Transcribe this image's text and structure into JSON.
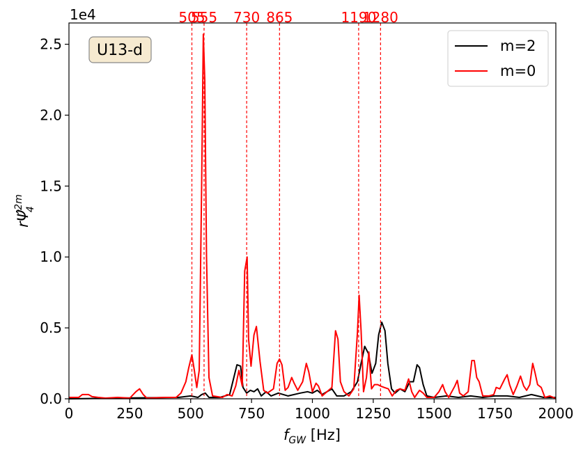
{
  "chart_data": {
    "type": "line",
    "xlabel_main": "f",
    "xlabel_sub": "GW",
    "xlabel_unit": " [Hz]",
    "ylabel": "rΨ̂",
    "ylabel_sup": "2m",
    "ylabel_sub": "4",
    "y_multiplier": "1e4",
    "badge": "U13-d",
    "xlim": [
      0,
      2000
    ],
    "ylim": [
      0,
      2.65
    ],
    "x_ticks": [
      0,
      250,
      500,
      750,
      1000,
      1250,
      1500,
      1750,
      2000
    ],
    "x_tick_labels": [
      "0",
      "250",
      "500",
      "750",
      "1000",
      "1250",
      "1500",
      "1750",
      "2000"
    ],
    "y_ticks": [
      0,
      0.5,
      1.0,
      1.5,
      2.0,
      2.5
    ],
    "y_tick_labels": [
      "0.0",
      "0.5",
      "1.0",
      "1.5",
      "2.0",
      "2.5"
    ],
    "peak_lines": [
      505,
      555,
      730,
      865,
      1190,
      1280
    ],
    "peak_labels": [
      "505",
      "555",
      "730",
      "865",
      "1190",
      "1280"
    ],
    "legend_position": "top-right",
    "series": [
      {
        "name": "m=2",
        "color": "#000000",
        "points": [
          [
            0,
            0
          ],
          [
            200,
            0.005
          ],
          [
            450,
            0.01
          ],
          [
            500,
            0.02
          ],
          [
            530,
            0.01
          ],
          [
            545,
            0.03
          ],
          [
            560,
            0.04
          ],
          [
            575,
            0.01
          ],
          [
            620,
            0.01
          ],
          [
            660,
            0.03
          ],
          [
            690,
            0.24
          ],
          [
            705,
            0.23
          ],
          [
            715,
            0.08
          ],
          [
            730,
            0.04
          ],
          [
            745,
            0.06
          ],
          [
            760,
            0.05
          ],
          [
            775,
            0.07
          ],
          [
            790,
            0.02
          ],
          [
            810,
            0.05
          ],
          [
            830,
            0.02
          ],
          [
            860,
            0.04
          ],
          [
            900,
            0.02
          ],
          [
            950,
            0.04
          ],
          [
            980,
            0.05
          ],
          [
            1000,
            0.04
          ],
          [
            1020,
            0.06
          ],
          [
            1040,
            0.03
          ],
          [
            1060,
            0.05
          ],
          [
            1080,
            0.07
          ],
          [
            1100,
            0.02
          ],
          [
            1130,
            0.02
          ],
          [
            1160,
            0.05
          ],
          [
            1185,
            0.12
          ],
          [
            1200,
            0.25
          ],
          [
            1215,
            0.37
          ],
          [
            1230,
            0.32
          ],
          [
            1245,
            0.18
          ],
          [
            1260,
            0.25
          ],
          [
            1272,
            0.45
          ],
          [
            1285,
            0.54
          ],
          [
            1298,
            0.48
          ],
          [
            1310,
            0.25
          ],
          [
            1325,
            0.07
          ],
          [
            1340,
            0.04
          ],
          [
            1360,
            0.07
          ],
          [
            1380,
            0.05
          ],
          [
            1400,
            0.12
          ],
          [
            1415,
            0.12
          ],
          [
            1430,
            0.24
          ],
          [
            1440,
            0.22
          ],
          [
            1455,
            0.1
          ],
          [
            1470,
            0.02
          ],
          [
            1500,
            0.01
          ],
          [
            1550,
            0.02
          ],
          [
            1600,
            0.01
          ],
          [
            1650,
            0.02
          ],
          [
            1700,
            0.01
          ],
          [
            1750,
            0.02
          ],
          [
            1800,
            0.02
          ],
          [
            1850,
            0.01
          ],
          [
            1900,
            0.03
          ],
          [
            1950,
            0.01
          ],
          [
            2000,
            0.01
          ]
        ]
      },
      {
        "name": "m=0",
        "color": "#ff0000",
        "points": [
          [
            0,
            0.01
          ],
          [
            40,
            0.01
          ],
          [
            55,
            0.03
          ],
          [
            80,
            0.03
          ],
          [
            95,
            0.015
          ],
          [
            120,
            0.01
          ],
          [
            150,
            0.005
          ],
          [
            200,
            0.01
          ],
          [
            250,
            0.005
          ],
          [
            275,
            0.05
          ],
          [
            290,
            0.07
          ],
          [
            305,
            0.03
          ],
          [
            320,
            0.005
          ],
          [
            400,
            0.01
          ],
          [
            440,
            0.01
          ],
          [
            460,
            0.04
          ],
          [
            480,
            0.12
          ],
          [
            492,
            0.22
          ],
          [
            505,
            0.31
          ],
          [
            515,
            0.2
          ],
          [
            525,
            0.08
          ],
          [
            535,
            0.2
          ],
          [
            545,
            1.5
          ],
          [
            552,
            2.57
          ],
          [
            558,
            2.25
          ],
          [
            565,
            1.0
          ],
          [
            575,
            0.15
          ],
          [
            590,
            0.02
          ],
          [
            630,
            0.01
          ],
          [
            650,
            0.03
          ],
          [
            670,
            0.02
          ],
          [
            685,
            0.09
          ],
          [
            698,
            0.2
          ],
          [
            712,
            0.09
          ],
          [
            722,
            0.9
          ],
          [
            728,
            0.96
          ],
          [
            732,
            1.0
          ],
          [
            738,
            0.42
          ],
          [
            748,
            0.23
          ],
          [
            760,
            0.45
          ],
          [
            770,
            0.51
          ],
          [
            785,
            0.26
          ],
          [
            800,
            0.06
          ],
          [
            815,
            0.04
          ],
          [
            840,
            0.07
          ],
          [
            855,
            0.25
          ],
          [
            865,
            0.28
          ],
          [
            875,
            0.24
          ],
          [
            888,
            0.06
          ],
          [
            900,
            0.08
          ],
          [
            915,
            0.15
          ],
          [
            925,
            0.11
          ],
          [
            940,
            0.06
          ],
          [
            960,
            0.12
          ],
          [
            975,
            0.25
          ],
          [
            985,
            0.19
          ],
          [
            1000,
            0.05
          ],
          [
            1015,
            0.11
          ],
          [
            1025,
            0.09
          ],
          [
            1040,
            0.02
          ],
          [
            1060,
            0.05
          ],
          [
            1080,
            0.08
          ],
          [
            1095,
            0.48
          ],
          [
            1105,
            0.42
          ],
          [
            1115,
            0.12
          ],
          [
            1130,
            0.05
          ],
          [
            1150,
            0.02
          ],
          [
            1170,
            0.07
          ],
          [
            1185,
            0.47
          ],
          [
            1192,
            0.73
          ],
          [
            1200,
            0.48
          ],
          [
            1210,
            0.05
          ],
          [
            1222,
            0.15
          ],
          [
            1232,
            0.33
          ],
          [
            1243,
            0.07
          ],
          [
            1255,
            0.1
          ],
          [
            1268,
            0.1
          ],
          [
            1280,
            0.09
          ],
          [
            1295,
            0.08
          ],
          [
            1312,
            0.07
          ],
          [
            1328,
            0.02
          ],
          [
            1345,
            0.06
          ],
          [
            1360,
            0.07
          ],
          [
            1380,
            0.06
          ],
          [
            1395,
            0.14
          ],
          [
            1408,
            0.05
          ],
          [
            1420,
            0.01
          ],
          [
            1440,
            0.06
          ],
          [
            1455,
            0.04
          ],
          [
            1470,
            0.01
          ],
          [
            1500,
            0.01
          ],
          [
            1520,
            0.05
          ],
          [
            1535,
            0.1
          ],
          [
            1545,
            0.05
          ],
          [
            1560,
            0.01
          ],
          [
            1585,
            0.09
          ],
          [
            1595,
            0.13
          ],
          [
            1605,
            0.04
          ],
          [
            1620,
            0.02
          ],
          [
            1640,
            0.05
          ],
          [
            1655,
            0.27
          ],
          [
            1665,
            0.27
          ],
          [
            1675,
            0.15
          ],
          [
            1685,
            0.12
          ],
          [
            1700,
            0.02
          ],
          [
            1725,
            0.02
          ],
          [
            1745,
            0.03
          ],
          [
            1755,
            0.08
          ],
          [
            1770,
            0.07
          ],
          [
            1790,
            0.14
          ],
          [
            1800,
            0.17
          ],
          [
            1810,
            0.1
          ],
          [
            1825,
            0.03
          ],
          [
            1840,
            0.09
          ],
          [
            1855,
            0.16
          ],
          [
            1868,
            0.09
          ],
          [
            1880,
            0.06
          ],
          [
            1893,
            0.1
          ],
          [
            1905,
            0.25
          ],
          [
            1915,
            0.18
          ],
          [
            1925,
            0.1
          ],
          [
            1940,
            0.08
          ],
          [
            1955,
            0.01
          ],
          [
            1975,
            0.02
          ],
          [
            1990,
            0.01
          ],
          [
            2000,
            0.0
          ]
        ]
      }
    ]
  }
}
